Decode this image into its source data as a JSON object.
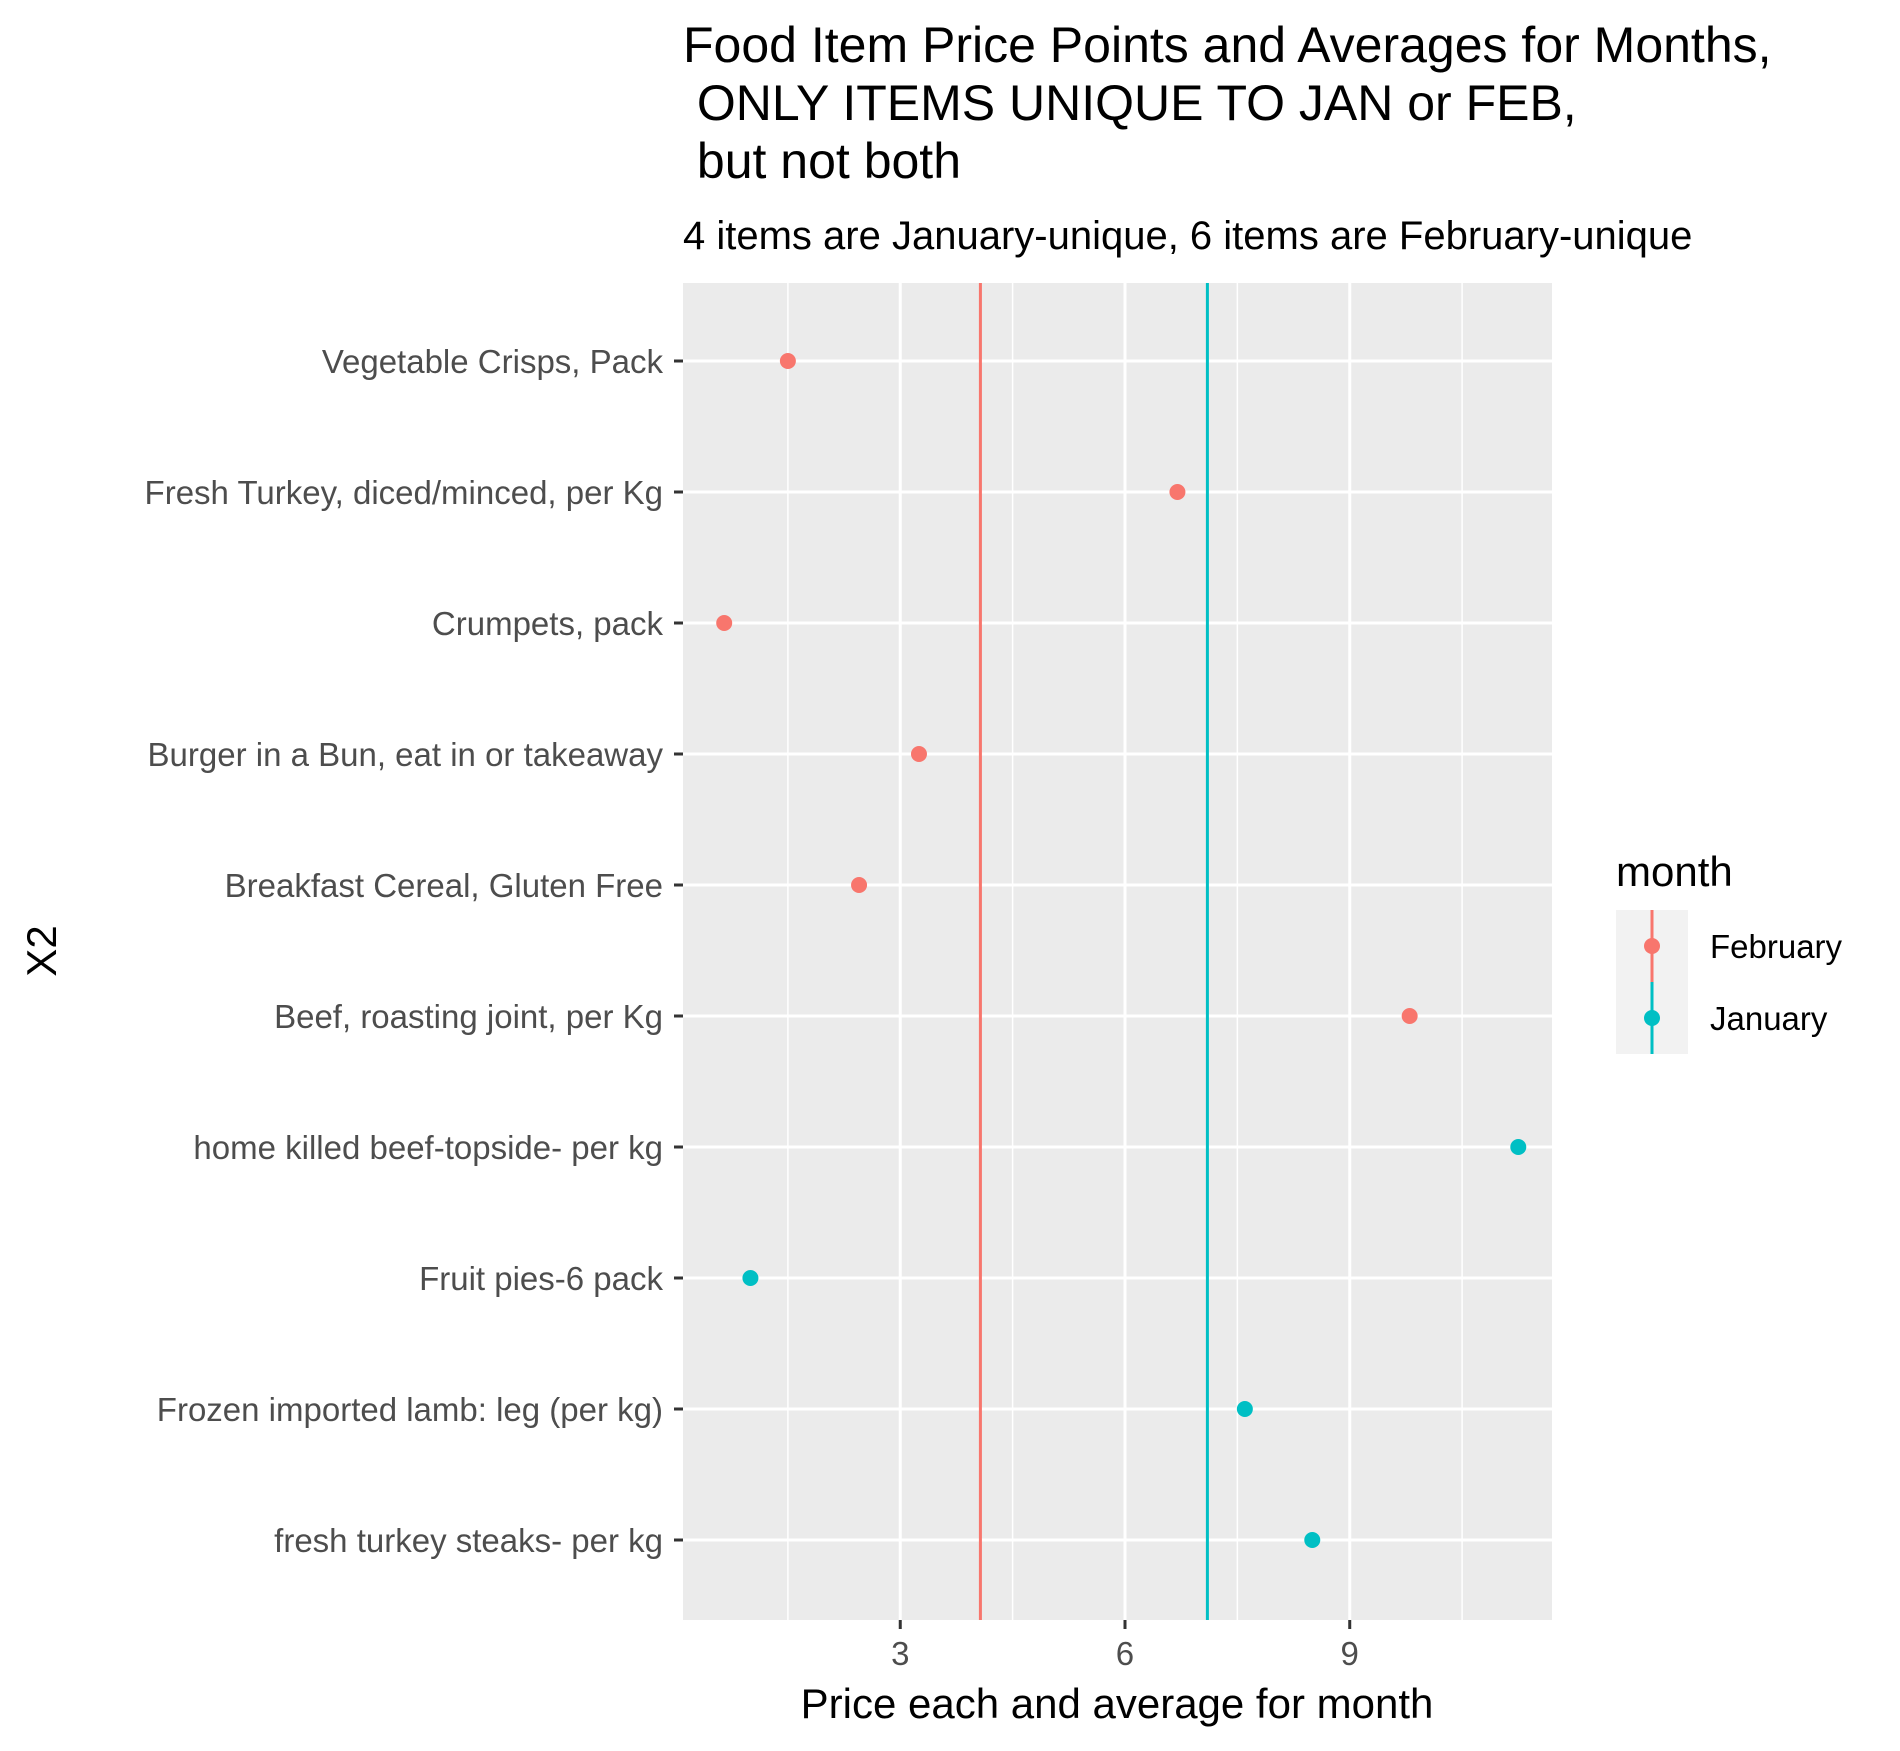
{
  "chart_data": {
    "type": "scatter",
    "title_lines": [
      "Food Item Price Points and Averages for Months,",
      " ONLY ITEMS UNIQUE TO JAN or FEB,",
      " but not both"
    ],
    "subtitle": "4 items are January-unique, 6 items are February-unique",
    "xlabel": "Price each and average for month",
    "ylabel": "X2",
    "xlim": [
      0.1,
      11.7
    ],
    "x_ticks": [
      3,
      6,
      9
    ],
    "grid": true,
    "legend": {
      "title": "month",
      "position": "right",
      "entries": [
        "February",
        "January"
      ]
    },
    "colors": {
      "February": "#F8766D",
      "January": "#00BFC4",
      "panel": "#EBEBEB",
      "grid": "#FFFFFF"
    },
    "categories": [
      "Vegetable Crisps, Pack",
      "Fresh Turkey, diced/minced, per Kg",
      "Crumpets, pack",
      "Burger in a Bun, eat in or takeaway",
      "Breakfast Cereal, Gluten Free",
      "Beef, roasting joint, per Kg",
      "home killed beef-topside- per kg",
      "Fruit pies-6 pack",
      "Frozen imported lamb: leg (per kg)",
      "fresh turkey steaks- per kg"
    ],
    "series": [
      {
        "name": "February",
        "points": [
          {
            "item": "Vegetable Crisps, Pack",
            "x": 1.5
          },
          {
            "item": "Fresh Turkey, diced/minced, per Kg",
            "x": 6.7
          },
          {
            "item": "Crumpets, pack",
            "x": 0.65
          },
          {
            "item": "Burger in a Bun, eat in or takeaway",
            "x": 3.25
          },
          {
            "item": "Breakfast Cereal, Gluten Free",
            "x": 2.45
          },
          {
            "item": "Beef, roasting joint, per Kg",
            "x": 9.8
          }
        ],
        "average": 4.07
      },
      {
        "name": "January",
        "points": [
          {
            "item": "home killed beef-topside- per kg",
            "x": 11.25
          },
          {
            "item": "Fruit pies-6 pack",
            "x": 1.0
          },
          {
            "item": "Frozen imported lamb: leg (per kg)",
            "x": 7.6
          },
          {
            "item": "fresh turkey steaks- per kg",
            "x": 8.5
          }
        ],
        "average": 7.1
      }
    ]
  }
}
